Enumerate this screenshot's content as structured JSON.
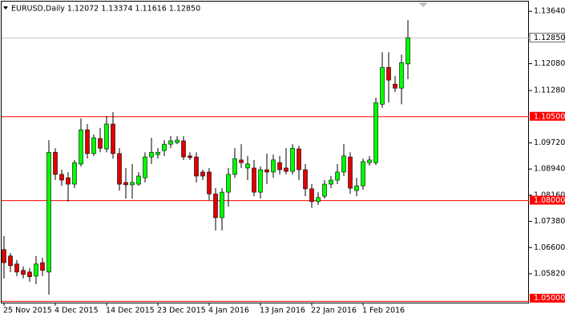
{
  "chart_data": {
    "type": "candlestick",
    "title": "EURUSD,Daily  1.12072 1.13374 1.11616 1.12850",
    "categories": [
      "25 Nov 2015",
      null,
      null,
      null,
      null,
      null,
      null,
      null,
      "4 Dec 2015",
      null,
      null,
      null,
      null,
      null,
      null,
      null,
      "14 Dec 2015",
      null,
      null,
      null,
      null,
      null,
      null,
      null,
      "23 Dec 2015",
      null,
      null,
      null,
      null,
      null,
      null,
      null,
      "4 Jan 2016",
      null,
      null,
      null,
      null,
      null,
      null,
      null,
      "13 Jan 2016",
      null,
      null,
      null,
      null,
      null,
      null,
      null,
      "22 Jan 2016",
      null,
      null,
      null,
      null,
      null,
      null,
      null,
      "1 Feb 2016",
      null,
      null,
      null,
      null,
      null,
      null,
      null
    ],
    "open": [
      1.0654,
      1.0635,
      1.0611,
      1.0592,
      1.0587,
      1.0575,
      1.0615,
      1.0587,
      1.0944,
      1.0878,
      1.0868,
      1.0849,
      1.0909,
      1.1011,
      1.094,
      1.0985,
      1.0954,
      1.1028,
      1.094,
      1.0854,
      1.0847,
      1.0849,
      1.0868,
      1.093,
      1.0937,
      1.0949,
      1.0968,
      1.0973,
      1.0978,
      1.0933,
      1.093,
      1.0885,
      1.0885,
      1.082,
      1.0749,
      1.0825,
      1.0878,
      1.0921,
      1.0897,
      1.0897,
      1.0825,
      1.0892,
      1.0885,
      1.0913,
      1.0897,
      1.0887,
      1.0954,
      1.0892,
      1.0835,
      1.0797,
      1.0813,
      1.0849,
      1.0861,
      1.0885,
      1.093,
      1.083,
      1.0844,
      1.0913,
      1.0913,
      1.1087,
      1.1197,
      1.1147,
      1.1135,
      1.12072
    ],
    "high": [
      1.0694,
      1.0644,
      1.0623,
      1.0604,
      1.0599,
      1.0635,
      1.063,
      1.098,
      1.0956,
      1.0892,
      1.0885,
      1.0921,
      1.1045,
      1.1028,
      1.0997,
      1.1016,
      1.1052,
      1.1064,
      1.0956,
      1.0897,
      1.0909,
      1.0885,
      1.0944,
      1.0987,
      1.0956,
      1.098,
      1.0992,
      1.0992,
      1.0992,
      1.0944,
      1.0944,
      1.0892,
      1.0897,
      1.0837,
      1.0837,
      1.0897,
      1.0956,
      1.0968,
      1.0933,
      1.0921,
      1.0902,
      1.094,
      1.0937,
      1.0933,
      1.0956,
      1.0968,
      1.0963,
      1.0909,
      1.0849,
      1.0825,
      1.0861,
      1.0873,
      1.0909,
      1.0968,
      1.0944,
      1.0868,
      1.0925,
      1.0933,
      1.1107,
      1.1242,
      1.1242,
      1.1171,
      1.1235,
      1.13374
    ],
    "low": [
      1.0568,
      1.0587,
      1.0575,
      1.0568,
      1.0558,
      1.0551,
      1.0575,
      1.052,
      1.0861,
      1.0844,
      1.0797,
      1.0837,
      1.0902,
      1.0925,
      1.0933,
      1.0944,
      1.0944,
      1.0925,
      1.083,
      1.0806,
      1.0806,
      1.0844,
      1.0854,
      1.0909,
      1.0925,
      1.0933,
      1.0956,
      1.0968,
      1.0921,
      1.0921,
      1.0854,
      1.0861,
      1.0801,
      1.0711,
      1.0711,
      1.0782,
      1.0868,
      1.0897,
      1.0861,
      1.0813,
      1.0806,
      1.0849,
      1.0868,
      1.0878,
      1.0878,
      1.0878,
      1.0861,
      1.0813,
      1.0778,
      1.0787,
      1.0806,
      1.0837,
      1.0849,
      1.0873,
      1.082,
      1.0813,
      1.0832,
      1.0904,
      1.0906,
      1.1076,
      1.1092,
      1.1123,
      1.1087,
      1.11616
    ],
    "close": [
      1.0615,
      1.0606,
      1.0587,
      1.058,
      1.0573,
      1.0611,
      1.0592,
      1.0944,
      1.0878,
      1.0861,
      1.0849,
      1.0913,
      1.1011,
      1.094,
      1.0987,
      1.0956,
      1.1028,
      1.094,
      1.0849,
      1.0847,
      1.0854,
      1.0873,
      1.093,
      1.0944,
      1.0944,
      1.0968,
      1.0978,
      1.098,
      1.093,
      1.0928,
      1.0873,
      1.0873,
      1.082,
      1.0749,
      1.0825,
      1.0878,
      1.0925,
      1.0913,
      1.0909,
      1.0825,
      1.0892,
      1.0885,
      1.0921,
      1.0892,
      1.0887,
      1.0956,
      1.0892,
      1.0835,
      1.0797,
      1.0809,
      1.0849,
      1.0861,
      1.0885,
      1.0933,
      1.0837,
      1.0844,
      1.0916,
      1.0921,
      1.1092,
      1.1197,
      1.1159,
      1.1135,
      1.1211,
      1.1285
    ],
    "up_color": "#00ff00",
    "down_color": "#e00000",
    "ylim": [
      1.0496,
      1.1393
    ],
    "yticks": [
      {
        "value": 1.1364,
        "label": "1.13640"
      },
      {
        "value": 1.1208,
        "label": "1.12080"
      },
      {
        "value": 1.1128,
        "label": "1.11280"
      },
      {
        "value": 1.0972,
        "label": "1.09720"
      },
      {
        "value": 1.0894,
        "label": "1.08940"
      },
      {
        "value": 1.0816,
        "label": "1.08160"
      },
      {
        "value": 1.0738,
        "label": "1.07380"
      },
      {
        "value": 1.066,
        "label": "1.06600"
      },
      {
        "value": 1.0582,
        "label": "1.05820"
      }
    ],
    "levels": [
      {
        "value": 1.105,
        "label": "1.10500"
      },
      {
        "value": 1.08,
        "label": "1.08000"
      },
      {
        "value": 1.05,
        "label": "1.05000"
      }
    ],
    "level_color": "#ff0000",
    "last": {
      "value": 1.1285,
      "label": "1.12850"
    }
  }
}
